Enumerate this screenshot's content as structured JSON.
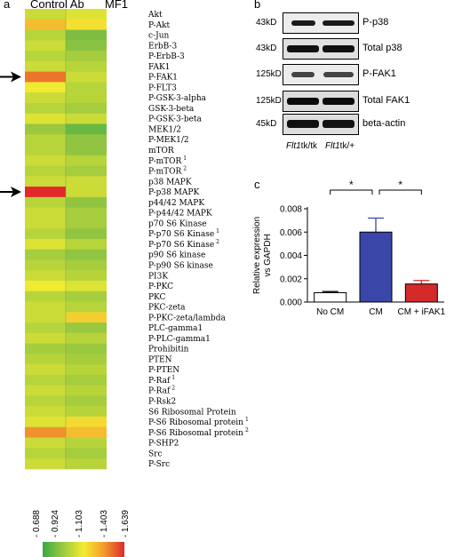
{
  "panel_a": {
    "letter": "a",
    "columns": [
      "Control Ab",
      "MF1"
    ],
    "scale_ticks": [
      "- 0.688",
      "- 0.924",
      "- 1.103",
      "- 1.403",
      "- 1.639"
    ],
    "scale_colors": [
      "#3aa845",
      "#9cc940",
      "#f5ec30",
      "#f29a2e",
      "#e02a2a"
    ],
    "arrow_rows": [
      "P-FAK1",
      "P-p38 MAPK"
    ]
  },
  "panel_b": {
    "letter": "b",
    "blots": [
      {
        "kd": "43kD",
        "name": "P-p38"
      },
      {
        "kd": "43kD",
        "name": "Total p38"
      },
      {
        "kd": "125kD",
        "name": "P-FAK1"
      },
      {
        "kd": "125kD",
        "name": "Total FAK1"
      },
      {
        "kd": "45kD",
        "name": "beta-actin"
      }
    ],
    "genotype_1_italic": "Flt1",
    "genotype_1_rest": "tk/tk",
    "genotype_2_italic": "Flt1",
    "genotype_2_rest": "tk/+"
  },
  "panel_c": {
    "letter": "c",
    "significance_marker": "*"
  },
  "chart_data": [
    {
      "type": "heatmap",
      "columns": [
        "Control Ab",
        "MF1"
      ],
      "rows": [
        {
          "label": "Akt",
          "sup": "",
          "values": [
            1.05,
            1.1
          ]
        },
        {
          "label": "P-Akt",
          "sup": "",
          "values": [
            1.3,
            1.2
          ]
        },
        {
          "label": "c-Jun",
          "sup": "",
          "values": [
            1.0,
            0.85
          ]
        },
        {
          "label": "ErbB-3",
          "sup": "",
          "values": [
            1.05,
            0.88
          ]
        },
        {
          "label": "P-ErbB-3",
          "sup": "",
          "values": [
            1.0,
            0.95
          ]
        },
        {
          "label": "FAK1",
          "sup": "",
          "values": [
            1.05,
            1.0
          ]
        },
        {
          "label": "P-FAK1",
          "sup": "",
          "values": [
            1.48,
            1.05
          ]
        },
        {
          "label": "P-FLT3",
          "sup": "",
          "values": [
            1.15,
            1.0
          ]
        },
        {
          "label": "P-GSK-3-alpha",
          "sup": "",
          "values": [
            1.05,
            1.0
          ]
        },
        {
          "label": "GSK-3-beta",
          "sup": "",
          "values": [
            1.0,
            0.95
          ]
        },
        {
          "label": "P-GSK-3-beta",
          "sup": "",
          "values": [
            1.1,
            1.05
          ]
        },
        {
          "label": "MEK1/2",
          "sup": "",
          "values": [
            0.92,
            0.8
          ]
        },
        {
          "label": "P-MEK1/2",
          "sup": "",
          "values": [
            1.0,
            0.9
          ]
        },
        {
          "label": "mTOR",
          "sup": "",
          "values": [
            1.0,
            0.9
          ]
        },
        {
          "label": "P-mTOR",
          "sup": "1",
          "values": [
            1.05,
            1.0
          ]
        },
        {
          "label": "P-mTOR",
          "sup": "2",
          "values": [
            1.0,
            0.95
          ]
        },
        {
          "label": "p38 MAPK",
          "sup": "",
          "values": [
            1.05,
            1.05
          ]
        },
        {
          "label": "P-p38 MAPK",
          "sup": "",
          "values": [
            1.639,
            1.05
          ]
        },
        {
          "label": "p44/42 MAPK",
          "sup": "",
          "values": [
            1.0,
            0.9
          ]
        },
        {
          "label": "P-p44/42 MAPK",
          "sup": "",
          "values": [
            1.05,
            0.95
          ]
        },
        {
          "label": "p70 S6 Kinase",
          "sup": "",
          "values": [
            1.05,
            0.95
          ]
        },
        {
          "label": "P-p70 S6 Kinase",
          "sup": "1",
          "values": [
            1.0,
            0.9
          ]
        },
        {
          "label": "P-p70 S6 Kinase",
          "sup": "2",
          "values": [
            1.1,
            1.0
          ]
        },
        {
          "label": "p90 S6 kinase",
          "sup": "",
          "values": [
            0.95,
            0.9
          ]
        },
        {
          "label": "P-p90 S6 kinase",
          "sup": "",
          "values": [
            1.0,
            0.95
          ]
        },
        {
          "label": "PI3K",
          "sup": "",
          "values": [
            1.05,
            1.0
          ]
        },
        {
          "label": "P-PKC",
          "sup": "",
          "values": [
            1.15,
            1.1
          ]
        },
        {
          "label": "PKC",
          "sup": "",
          "values": [
            1.0,
            0.95
          ]
        },
        {
          "label": "PKC-zeta",
          "sup": "",
          "values": [
            1.05,
            1.0
          ]
        },
        {
          "label": "P-PKC-zeta/lambda",
          "sup": "",
          "values": [
            1.05,
            1.25
          ]
        },
        {
          "label": "PLC-gamma1",
          "sup": "",
          "values": [
            1.0,
            0.92
          ]
        },
        {
          "label": "P-PLC-gamma1",
          "sup": "",
          "values": [
            1.05,
            1.0
          ]
        },
        {
          "label": "Prohibitin",
          "sup": "",
          "values": [
            0.95,
            0.92
          ]
        },
        {
          "label": "PTEN",
          "sup": "",
          "values": [
            1.0,
            0.95
          ]
        },
        {
          "label": "P-PTEN",
          "sup": "",
          "values": [
            1.05,
            1.0
          ]
        },
        {
          "label": "P-Raf",
          "sup": "1",
          "values": [
            1.0,
            0.95
          ]
        },
        {
          "label": "P-Raf",
          "sup": "2",
          "values": [
            1.05,
            1.0
          ]
        },
        {
          "label": "P-Rsk2",
          "sup": "",
          "values": [
            1.0,
            0.95
          ]
        },
        {
          "label": "S6 Ribosomal Protein",
          "sup": "",
          "values": [
            1.05,
            1.0
          ]
        },
        {
          "label": "P-S6 Ribosomal protein",
          "sup": "1",
          "values": [
            1.1,
            1.22
          ]
        },
        {
          "label": "P-S6 Ribosomal protein",
          "sup": "2",
          "values": [
            1.42,
            1.3
          ]
        },
        {
          "label": "P-SHP2",
          "sup": "",
          "values": [
            1.05,
            1.0
          ]
        },
        {
          "label": "Src",
          "sup": "",
          "values": [
            1.0,
            0.95
          ]
        },
        {
          "label": "P-Src",
          "sup": "",
          "values": [
            1.05,
            1.0
          ]
        }
      ],
      "scale_min": 0.688,
      "scale_max": 1.639
    },
    {
      "type": "bar",
      "categories": [
        "No CM",
        "CM",
        "CM + iFAK1"
      ],
      "values": [
        0.0008,
        0.006,
        0.00155
      ],
      "errors": [
        0.0001,
        0.0012,
        0.0003
      ],
      "bar_colors": [
        "#ffffff",
        "#3a47a8",
        "#d42a2a"
      ],
      "ylabel_line1": "Relative expression",
      "ylabel_line2": "vs GAPDH",
      "ylim": [
        0,
        0.008
      ],
      "yticks": [
        "0.000",
        "0.002",
        "0.004",
        "0.006",
        "0.008"
      ],
      "ytick_values": [
        0,
        0.002,
        0.004,
        0.006,
        0.008
      ]
    }
  ]
}
